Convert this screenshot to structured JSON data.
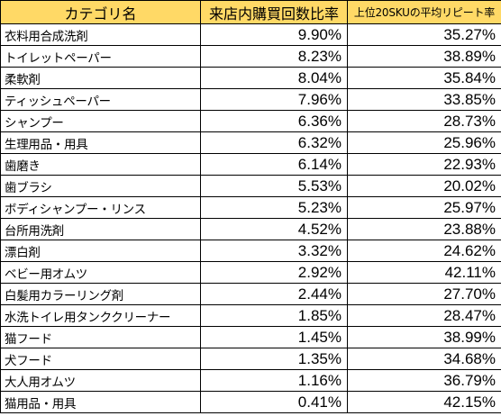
{
  "table": {
    "headers": {
      "category": "カテゴリ名",
      "visit_ratio": "来店内購買回数比率",
      "repeat_rate": "上位20SKUの平均リピート率"
    },
    "rows": [
      {
        "category": "衣料用合成洗剤",
        "visit_ratio": "9.90%",
        "repeat_rate": "35.27%"
      },
      {
        "category": "トイレットペーパー",
        "visit_ratio": "8.23%",
        "repeat_rate": "38.89%"
      },
      {
        "category": "柔軟剤",
        "visit_ratio": "8.04%",
        "repeat_rate": "35.84%"
      },
      {
        "category": "ティッシュペーパー",
        "visit_ratio": "7.96%",
        "repeat_rate": "33.85%"
      },
      {
        "category": "シャンプー",
        "visit_ratio": "6.36%",
        "repeat_rate": "28.73%"
      },
      {
        "category": "生理用品・用具",
        "visit_ratio": "6.32%",
        "repeat_rate": "25.96%"
      },
      {
        "category": "歯磨き",
        "visit_ratio": "6.14%",
        "repeat_rate": "22.93%"
      },
      {
        "category": "歯ブラシ",
        "visit_ratio": "5.53%",
        "repeat_rate": "20.02%"
      },
      {
        "category": "ボディシャンプー・リンス",
        "visit_ratio": "5.23%",
        "repeat_rate": "25.97%"
      },
      {
        "category": "台所用洗剤",
        "visit_ratio": "4.52%",
        "repeat_rate": "23.88%"
      },
      {
        "category": "漂白剤",
        "visit_ratio": "3.32%",
        "repeat_rate": "24.62%"
      },
      {
        "category": "ベビー用オムツ",
        "visit_ratio": "2.92%",
        "repeat_rate": "42.11%"
      },
      {
        "category": "白髪用カラーリング剤",
        "visit_ratio": "2.44%",
        "repeat_rate": "27.70%"
      },
      {
        "category": "水洗トイレ用タンククリーナー",
        "visit_ratio": "1.85%",
        "repeat_rate": "28.47%"
      },
      {
        "category": "猫フード",
        "visit_ratio": "1.45%",
        "repeat_rate": "38.99%"
      },
      {
        "category": "犬フード",
        "visit_ratio": "1.35%",
        "repeat_rate": "34.68%"
      },
      {
        "category": "大人用オムツ",
        "visit_ratio": "1.16%",
        "repeat_rate": "36.79%"
      },
      {
        "category": "猫用品・用具",
        "visit_ratio": "0.41%",
        "repeat_rate": "42.15%"
      }
    ]
  },
  "colors": {
    "header_fill": "#ffd966",
    "border": "#000000",
    "text": "#000000",
    "background": "#ffffff"
  }
}
